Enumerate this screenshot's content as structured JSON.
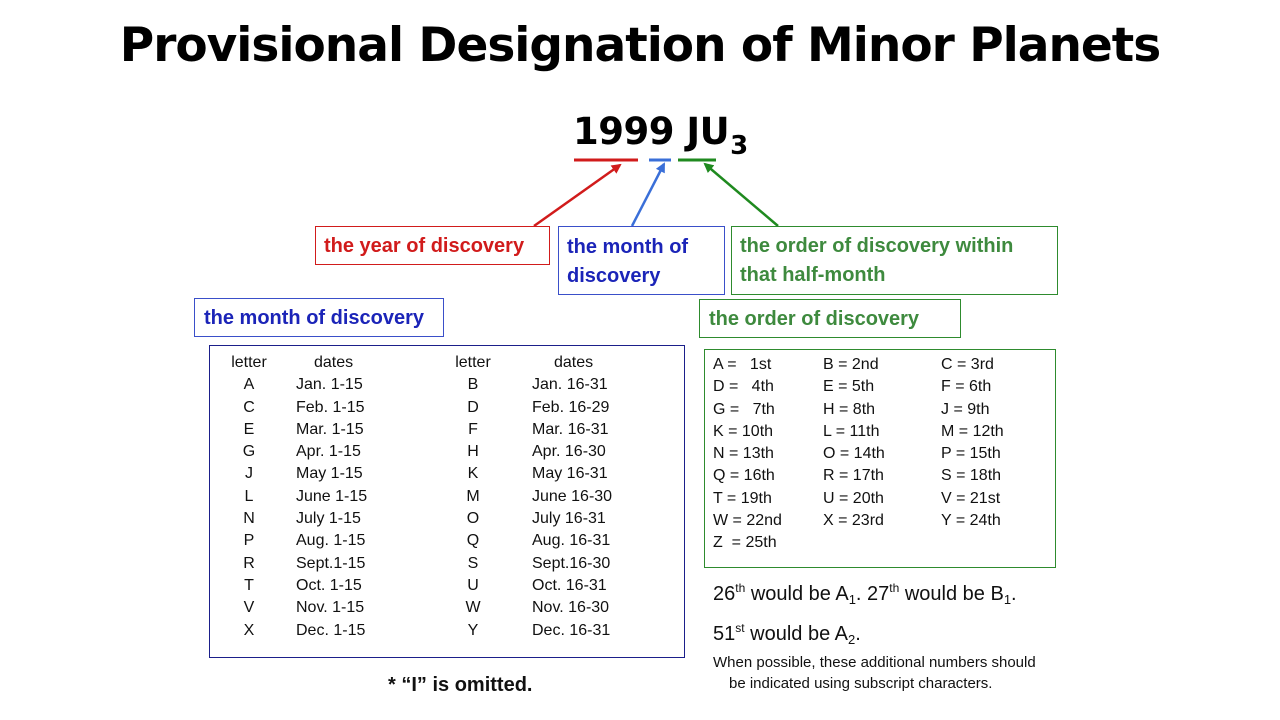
{
  "title": "Provisional Designation of Minor Planets",
  "designation": {
    "main": "1999 JU",
    "subscript": "3"
  },
  "labels": {
    "year": "the year of discovery",
    "month": "the month of discovery",
    "order": "the order of discovery within that half-month"
  },
  "headers": {
    "month_table": "the month of discovery",
    "order_table": "the order of discovery"
  },
  "month_table": {
    "columns": [
      "letter",
      "dates",
      "letter",
      "dates"
    ],
    "rows": [
      [
        "A",
        "Jan. 1-15",
        "B",
        "Jan. 16-31"
      ],
      [
        "C",
        "Feb. 1-15",
        "D",
        "Feb. 16-29"
      ],
      [
        "E",
        "Mar. 1-15",
        "F",
        "Mar. 16-31"
      ],
      [
        "G",
        "Apr. 1-15",
        "H",
        "Apr. 16-30"
      ],
      [
        "J",
        "May 1-15",
        "K",
        "May  16-31"
      ],
      [
        "L",
        "June 1-15",
        "M",
        "June 16-30"
      ],
      [
        "N",
        "July 1-15",
        "O",
        "July 16-31"
      ],
      [
        "P",
        "Aug. 1-15",
        "Q",
        "Aug. 16-31"
      ],
      [
        "R",
        "Sept.1-15",
        "S",
        "Sept.16-30"
      ],
      [
        "T",
        "Oct. 1-15",
        "U",
        "Oct. 16-31"
      ],
      [
        "V",
        "Nov. 1-15",
        "W",
        "Nov. 16-30"
      ],
      [
        "X",
        "Dec. 1-15",
        "Y",
        "Dec. 16-31"
      ]
    ]
  },
  "order_table": {
    "col1": [
      "A =   1st",
      "D =   4th",
      "G =   7th",
      "K = 10th",
      "N = 13th",
      "Q = 16th",
      "T = 19th",
      "W = 22nd",
      "Z  = 25th"
    ],
    "col2": [
      "B = 2nd",
      "E = 5th",
      "H = 8th",
      "L = 11th",
      "O = 14th",
      "R = 17th",
      "U = 20th",
      "X = 23rd"
    ],
    "col3": [
      "C = 3rd",
      "F = 6th",
      "J = 9th",
      "M = 12th",
      "P = 15th",
      "S = 18th",
      "V = 21st",
      "Y = 24th"
    ]
  },
  "notes": {
    "line1": {
      "a": "26",
      "a_sup": "th",
      "b": " would be A",
      "b_sub": "1",
      "c": ". 27",
      "c_sup": "th",
      "d": " would be B",
      "d_sub": "1",
      "e": "."
    },
    "line2": {
      "a": "51",
      "a_sup": "st",
      "b": " would be A",
      "b_sub": "2",
      "c": "."
    },
    "small_line1": "When possible, these additional numbers should",
    "small_line2": "be indicated using subscript characters.",
    "omitted": "* “I” is omitted."
  },
  "colors": {
    "red": "#d11b1b",
    "blue": "#3a4fc9",
    "green": "#2e8b2e"
  }
}
